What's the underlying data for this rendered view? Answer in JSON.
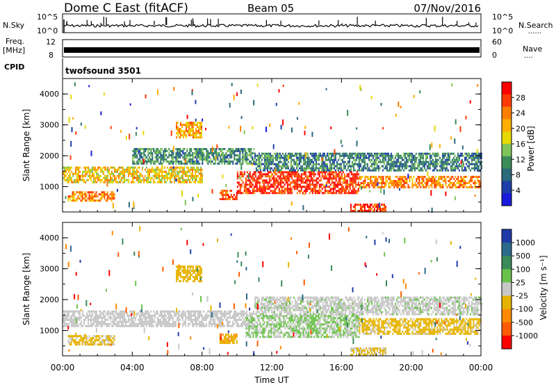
{
  "header": {
    "station": "Dome C East (fitACF)",
    "beam": "Beam 05",
    "date": "07/Nov/2016"
  },
  "sky_panel": {
    "label": "N.Sky",
    "left_ticks": [
      "10^5",
      "10^0"
    ],
    "right_ticks": [
      "10^5",
      "10^0"
    ],
    "right_label": "N.Search",
    "right_dots": "......"
  },
  "freq_panel": {
    "label_top": "Freq.",
    "label_bottom": "[MHz]",
    "left_ticks": [
      "12",
      "8"
    ],
    "right_ticks": [
      "60",
      "0"
    ],
    "right_label": "Nave",
    "right_dots": "...."
  },
  "cpid_panel": {
    "label": "CPID",
    "program": "twofsound 3501"
  },
  "power_panel": {
    "ylabel": "Slant Range [km]",
    "yticks": [
      "4000",
      "3000",
      "2000",
      "1000"
    ],
    "colorbar_label": "Power [dB]",
    "colorbar_ticks": [
      "28",
      "24",
      "20",
      "16",
      "12",
      "8",
      "4"
    ],
    "colorbar_colors": [
      "#ff0000",
      "#ff3a00",
      "#ff7e00",
      "#ffae00",
      "#e6d800",
      "#7fc45a",
      "#3c8c5a",
      "#2a6a7a",
      "#1d3ea8",
      "#1a1adc"
    ]
  },
  "velocity_panel": {
    "ylabel": "Slant Range [km]",
    "yticks": [
      "4000",
      "3000",
      "2000",
      "1000"
    ],
    "colorbar_label": "Velocity [m s⁻¹]",
    "colorbar_ticks": [
      "1000",
      "500",
      "100",
      "25",
      "-25",
      "-100",
      "-500",
      "-1000"
    ],
    "colorbar_colors": [
      "#1f3aa8",
      "#2a6a8a",
      "#3a8a5a",
      "#6ac24a",
      "#c8c8c8",
      "#e6b400",
      "#ff8a00",
      "#ff5a00",
      "#ff0000"
    ]
  },
  "xaxis": {
    "ticks": [
      "00:00",
      "04:00",
      "08:00",
      "12:00",
      "16:00",
      "20:00",
      "00:00"
    ],
    "label": "Time UT"
  },
  "chart_data": {
    "type": "heatmap",
    "title": "Dome C East (fitACF)",
    "subtitle": "Beam 05",
    "xlabel": "Time UT",
    "ylabel": "Slant Range [km]",
    "xlim": [
      "00:00",
      "24:00"
    ],
    "ylim": [
      180,
      4500
    ],
    "panels": [
      {
        "name": "Power",
        "unit": "dB",
        "colorbar_range": [
          0,
          30
        ],
        "bands": [
          {
            "t_start": 0.0,
            "t_end": 8.0,
            "r_low": 1150,
            "r_high": 1650,
            "value": 18
          },
          {
            "t_start": 0.3,
            "t_end": 3.0,
            "r_low": 550,
            "r_high": 850,
            "value": 22
          },
          {
            "t_start": 4.0,
            "t_end": 11.0,
            "r_low": 1750,
            "r_high": 2250,
            "value": 10
          },
          {
            "t_start": 6.5,
            "t_end": 8.0,
            "r_low": 2600,
            "r_high": 3100,
            "value": 20
          },
          {
            "t_start": 9.0,
            "t_end": 10.0,
            "r_low": 600,
            "r_high": 900,
            "value": 24
          },
          {
            "t_start": 10.0,
            "t_end": 17.0,
            "r_low": 800,
            "r_high": 1500,
            "value": 27
          },
          {
            "t_start": 16.5,
            "t_end": 18.5,
            "r_low": 180,
            "r_high": 450,
            "value": 26
          },
          {
            "t_start": 17.0,
            "t_end": 24.0,
            "r_low": 950,
            "r_high": 1350,
            "value": 22
          },
          {
            "t_start": 11.0,
            "t_end": 24.0,
            "r_low": 1500,
            "r_high": 2100,
            "value": 9
          }
        ]
      },
      {
        "name": "Velocity",
        "unit": "m s-1",
        "colorbar_range": [
          -1000,
          1000
        ],
        "bands": [
          {
            "t_start": 0.0,
            "t_end": 11.0,
            "r_low": 1150,
            "r_high": 1650,
            "value": 0
          },
          {
            "t_start": 0.3,
            "t_end": 3.0,
            "r_low": 550,
            "r_high": 850,
            "value": -150
          },
          {
            "t_start": 6.5,
            "t_end": 8.0,
            "r_low": 2600,
            "r_high": 3100,
            "value": -200
          },
          {
            "t_start": 9.0,
            "t_end": 10.0,
            "r_low": 600,
            "r_high": 900,
            "value": -300
          },
          {
            "t_start": 10.5,
            "t_end": 17.0,
            "r_low": 800,
            "r_high": 1500,
            "value": 120
          },
          {
            "t_start": 16.5,
            "t_end": 18.5,
            "r_low": 180,
            "r_high": 450,
            "value": -150
          },
          {
            "t_start": 17.0,
            "t_end": 24.0,
            "r_low": 900,
            "r_high": 1400,
            "value": -180
          },
          {
            "t_start": 11.0,
            "t_end": 24.0,
            "r_low": 1500,
            "r_high": 2100,
            "value": 40
          }
        ]
      }
    ]
  }
}
